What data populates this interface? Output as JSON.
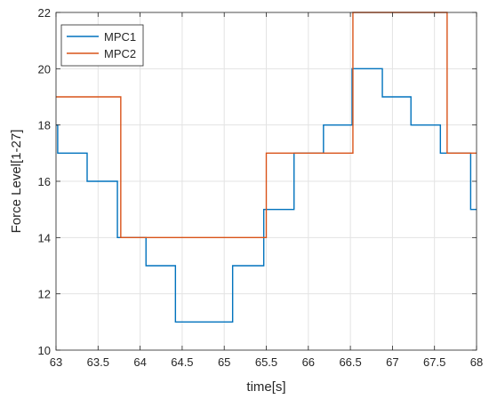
{
  "chart_data": {
    "type": "line",
    "xlabel": "time[s]",
    "ylabel": "Force Level[1-27]",
    "xlim": [
      63,
      68
    ],
    "ylim": [
      10,
      22
    ],
    "x_ticks": [
      63,
      63.5,
      64,
      64.5,
      65,
      65.5,
      66,
      66.5,
      67,
      67.5,
      68
    ],
    "x_tick_labels": [
      "63",
      "63.5",
      "64",
      "64.5",
      "65",
      "65.5",
      "66",
      "66.5",
      "67",
      "67.5",
      "68"
    ],
    "y_ticks": [
      10,
      12,
      14,
      16,
      18,
      20,
      22
    ],
    "y_tick_labels": [
      "10",
      "12",
      "14",
      "16",
      "18",
      "20",
      "22"
    ],
    "grid": true,
    "legend_position": "top-left",
    "series": [
      {
        "name": "MPC1",
        "color": "#0072BD",
        "step": "post",
        "x": [
          63,
          63.02,
          63.37,
          63.73,
          64.07,
          64.42,
          65.1,
          65.47,
          65.83,
          66.18,
          66.52,
          66.88,
          67.22,
          67.57,
          67.93
        ],
        "y": [
          18,
          17,
          16,
          14,
          13,
          11,
          13,
          15,
          17,
          18,
          20,
          19,
          18,
          17,
          15
        ]
      },
      {
        "name": "MPC2",
        "color": "#D95319",
        "step": "post",
        "x": [
          63,
          63.77,
          65.5,
          66.53,
          67.65
        ],
        "y": [
          19,
          14,
          17,
          22,
          17
        ]
      }
    ]
  }
}
